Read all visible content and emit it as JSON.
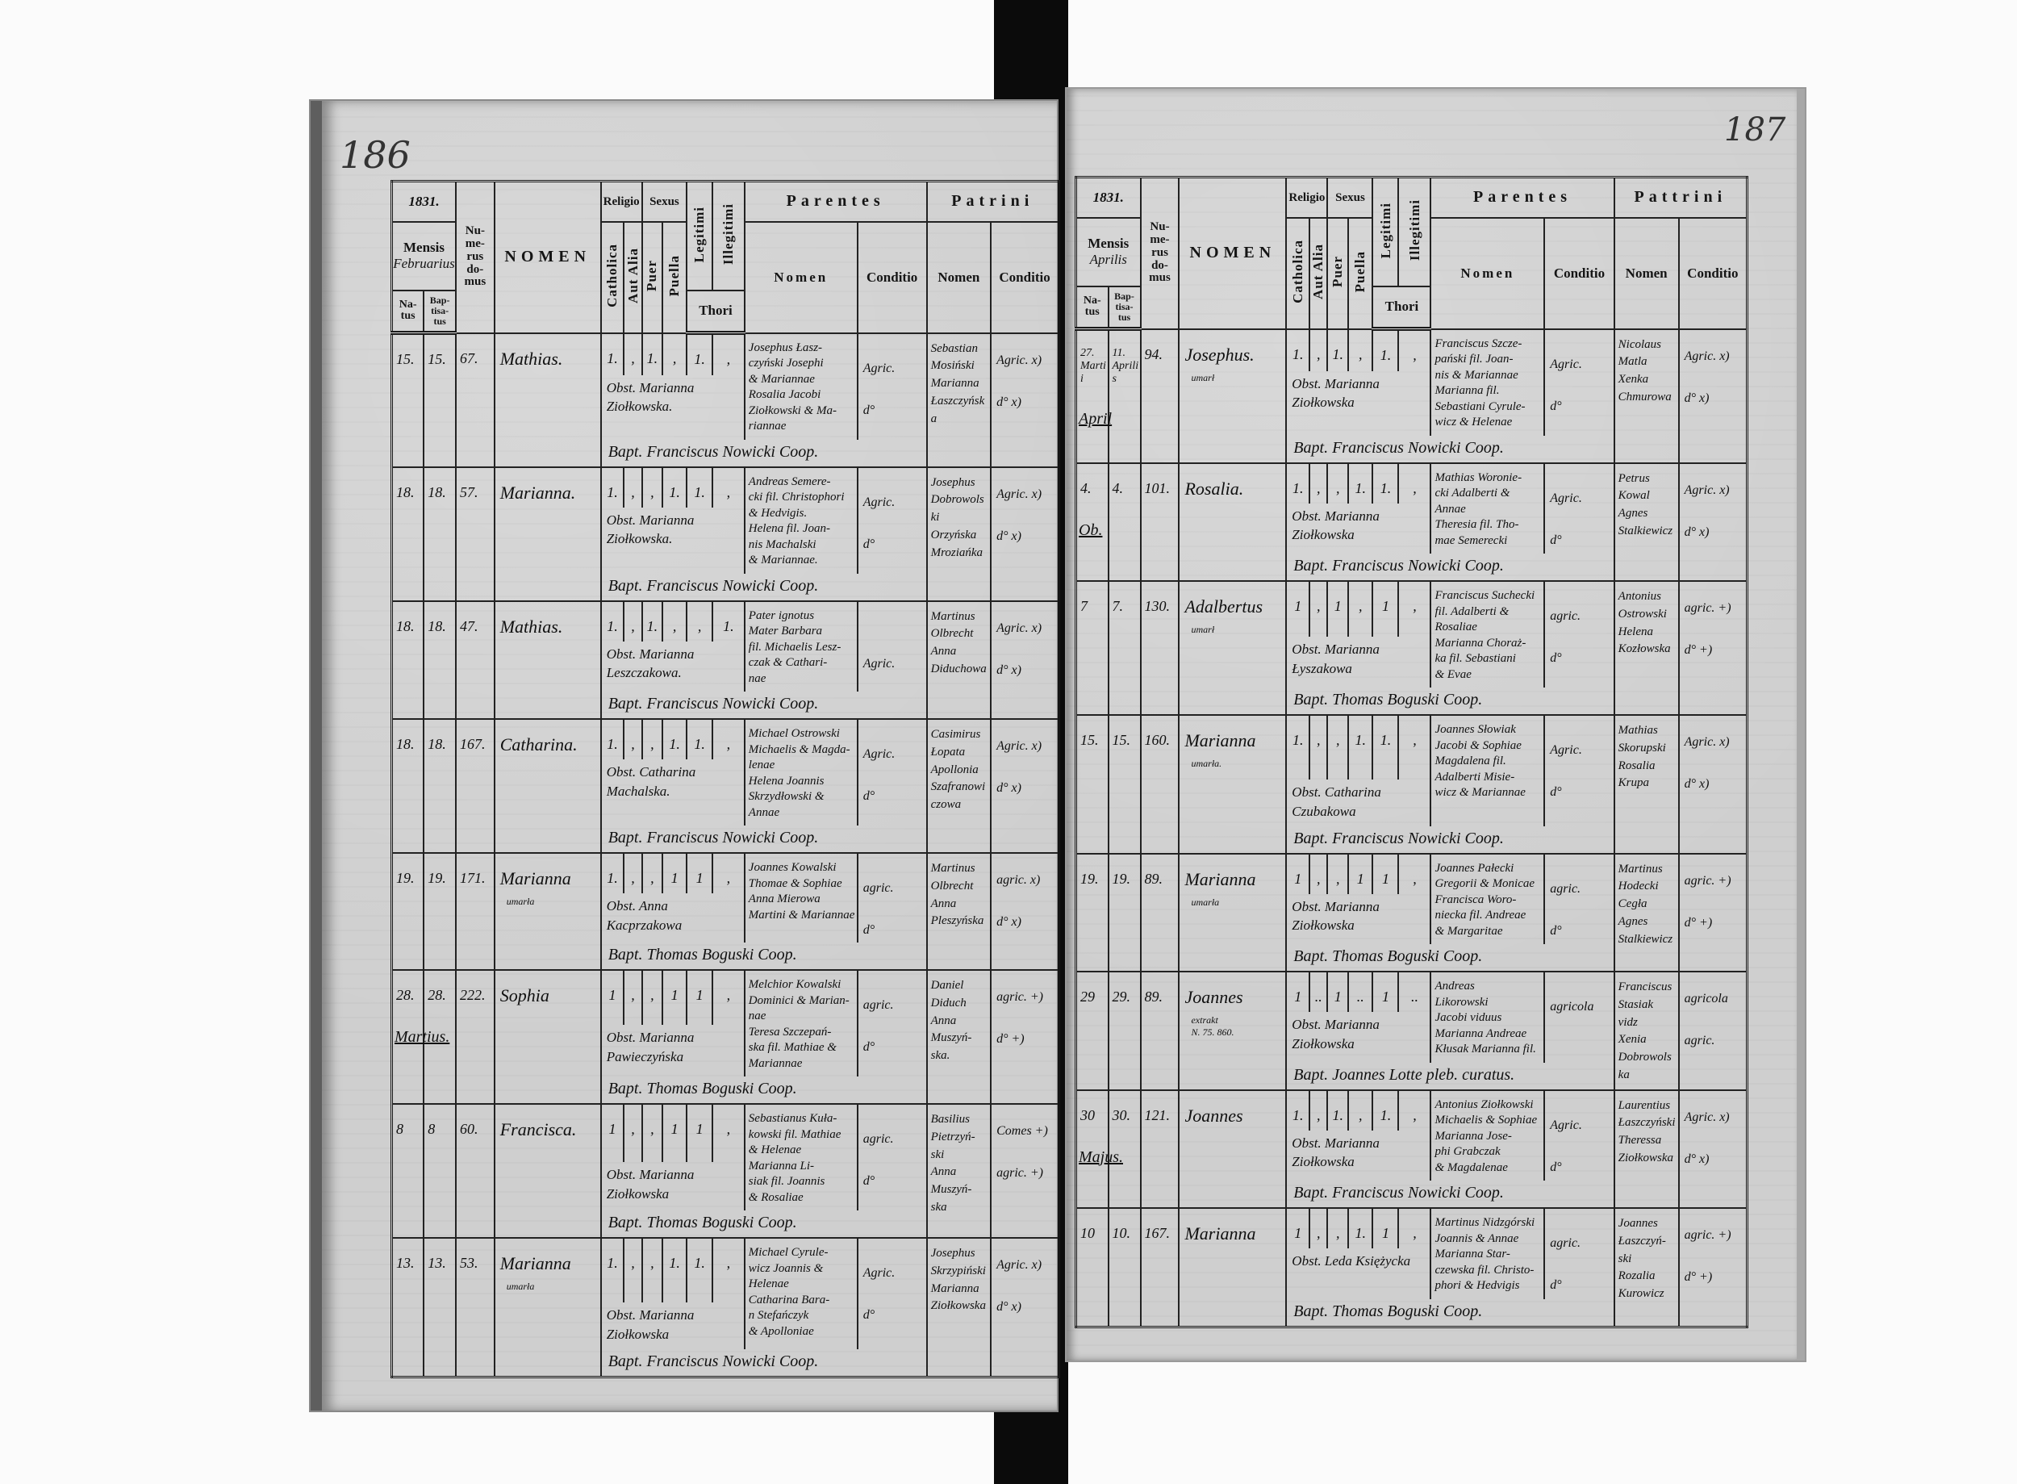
{
  "headers": {
    "year": "1831.",
    "mensis": "Mensis",
    "natus": "Na-\ntus",
    "baptisatus": "Bap-\ntisa-\ntus",
    "numerus_domus": "Nu-\nme-\nrus\ndo-\nmus",
    "nomen": "NOMEN",
    "religio": "Religio",
    "catholica": "Catholica",
    "aut_alia": "Aut Alia",
    "sexus": "Sexus",
    "puer": "Puer",
    "puella": "Puella",
    "legitimi": "Legitimi",
    "illegitimi": "Illegitimi",
    "thori": "Thori",
    "parentes": "Parentes",
    "sub_nomen": "Nomen",
    "conditio": "Conditio"
  },
  "pages": [
    {
      "page_number": "186",
      "month": "Februarius",
      "patrini_label": "Patrini",
      "entries": [
        {
          "natus": "15.",
          "baptisatus": "15.",
          "domus": "67.",
          "nomen": "Mathias.",
          "note": "",
          "marks": [
            "1.",
            ",",
            "1.",
            ",",
            "1.",
            ","
          ],
          "obstetrix": "Obst. Marianna\n   Ziołkowska.",
          "parents": "Josephus Łasz-\nczyński Josephi\n& Mariannae\nRosalia Jacobi\nZiołkowski & Ma-\nriannae",
          "parents_cond": [
            "Agric.",
            "d°"
          ],
          "patrini": "Sebastian\nMosiński\nMarianna\nŁaszczyńska",
          "patrini_cond": [
            "Agric. x)",
            "d° x)"
          ],
          "bapt": "Bapt. Franciscus Nowicki Coop.",
          "month_marker": ""
        },
        {
          "natus": "18.",
          "baptisatus": "18.",
          "domus": "57.",
          "nomen": "Marianna.",
          "note": "",
          "marks": [
            "1.",
            ",",
            ",",
            "1.",
            "1.",
            ","
          ],
          "obstetrix": "Obst. Marianna\n   Ziołkowska.",
          "parents": "Andreas Semere-\ncki fil. Christophori\n& Hedvigis.\nHelena fil. Joan-\nnis Machalski\n& Mariannae.",
          "parents_cond": [
            "Agric.",
            "d°"
          ],
          "patrini": "Josephus\nDobrowolski\nOrzyńska\nMroziańka",
          "patrini_cond": [
            "Agric. x)",
            "d° x)"
          ],
          "bapt": "Bapt. Franciscus Nowicki Coop.",
          "month_marker": ""
        },
        {
          "natus": "18.",
          "baptisatus": "18.",
          "domus": "47.",
          "nomen": "Mathias.",
          "note": "",
          "marks": [
            "1.",
            ",",
            "1.",
            ",",
            ",",
            "1."
          ],
          "obstetrix": "Obst. Marianna\n   Leszczakowa.",
          "parents": "Pater ignotus\nMater Barbara\nfil. Michaelis Lesz-\nczak & Cathari-\nnae",
          "parents_cond": [
            "",
            "Agric."
          ],
          "patrini": "Martinus\nOlbrecht\nAnna\nDiduchowa",
          "patrini_cond": [
            "Agric. x)",
            "d° x)"
          ],
          "bapt": "Bapt. Franciscus Nowicki Coop.",
          "month_marker": ""
        },
        {
          "natus": "18.",
          "baptisatus": "18.",
          "domus": "167.",
          "nomen": "Catharina.",
          "note": "",
          "marks": [
            "1.",
            ",",
            ",",
            "1.",
            "1.",
            ","
          ],
          "obstetrix": "Obst. Catharina\n   Machalska.",
          "parents": "Michael Ostrowski\nMichaelis & Magda-\nlenae\nHelena Joannis\nSkrzydłowski & Annae",
          "parents_cond": [
            "Agric.",
            "d°"
          ],
          "patrini": "Casimirus\nŁopata\nApollonia\nSzafranowiczowa",
          "patrini_cond": [
            "Agric. x)",
            "d° x)"
          ],
          "bapt": "Bapt. Franciscus Nowicki Coop.",
          "month_marker": ""
        },
        {
          "natus": "19.",
          "baptisatus": "19.",
          "domus": "171.",
          "nomen": "Marianna",
          "note": "umarła",
          "marks": [
            "1.",
            ",",
            ",",
            "1",
            "1",
            ","
          ],
          "obstetrix": "Obst. Anna\n   Kacprzakowa",
          "parents": "Joannes Kowalski\nThomae & Sophiae\nAnna Mierowa\nMartini & Mariannae",
          "parents_cond": [
            "agric.",
            "d°"
          ],
          "patrini": "Martinus\nOlbrecht\nAnna\nPleszyńska",
          "patrini_cond": [
            "agric. x)",
            "d° x)"
          ],
          "bapt": "Bapt. Thomas Boguski Coop.",
          "month_marker": ""
        },
        {
          "natus": "28.",
          "baptisatus": "28.",
          "domus": "222.",
          "nomen": "Sophia",
          "note": "",
          "marks": [
            "1",
            ",",
            ",",
            "1",
            "1",
            ","
          ],
          "obstetrix": "\n\nObst. Marianna\n   Pawieczyńska",
          "parents": "Melchior Kowalski\nDominici & Marian-\nnae\nTeresa Szczepań-\nska fil. Mathiae &\nMariannae",
          "parents_cond": [
            "agric.",
            "d°"
          ],
          "patrini": "Daniel\nDiduch\nAnna\nMuszyń-\nska.",
          "patrini_cond": [
            "agric. +)",
            "d° +)"
          ],
          "bapt": "Bapt. Thomas Boguski Coop.",
          "month_marker": "Martius."
        },
        {
          "natus": "8",
          "baptisatus": "8",
          "domus": "60.",
          "nomen": "Francisca.",
          "note": "",
          "marks": [
            "1",
            ",",
            ",",
            "1",
            "1",
            ","
          ],
          "obstetrix": "\n\n\nObst. Marianna\n   Ziołkowska",
          "parents": "Sebastianus Kuła-\nkowski fil. Mathiae\n& Helenae\nMarianna Li-\nsiak fil. Joannis\n& Rosaliae",
          "parents_cond": [
            "agric.",
            "d°"
          ],
          "patrini": "Basilius\nPietrzyń-\nski\nAnna\nMuszyń-\nska",
          "patrini_cond": [
            "Comes +)",
            "agric. +)"
          ],
          "bapt": "Bapt. Thomas Boguski Coop.",
          "month_marker": ""
        },
        {
          "natus": "13.",
          "baptisatus": "13.",
          "domus": "53.",
          "nomen": "Marianna",
          "note": "umarła",
          "marks": [
            "1.",
            ",",
            ",",
            "1.",
            "1.",
            ","
          ],
          "obstetrix": "Obst. Marianna\n   Ziołkowska",
          "parents": "Michael Cyrule-\nwicz Joannis &\nHelenae\nCatharina Bara-\nn Stefańczyk\n& Apolloniae",
          "parents_cond": [
            "Agric.",
            "d°"
          ],
          "patrini": "Josephus\nSkrzypiński\nMarianna\nZiołkowska",
          "patrini_cond": [
            "Agric. x)",
            "d° x)"
          ],
          "bapt": "Bapt. Franciscus Nowicki Coop.",
          "month_marker": ""
        }
      ]
    },
    {
      "page_number": "187",
      "month": "Aprilis",
      "patrini_label": "Pattrini",
      "entries": [
        {
          "natus": "27.\nMartii",
          "baptisatus": "11.\nAprilis",
          "domus": "94.",
          "nomen": "Josephus.",
          "note": "umarł",
          "marks": [
            "1.",
            ",",
            "1.",
            ",",
            "1.",
            ","
          ],
          "obstetrix": "Obst. Marianna\n   Ziołkowska",
          "parents": "Franciscus Szcze-\npański fil. Joan-\nnis & Mariannae\nMarianna fil.\nSebastiani Cyrule-\nwicz & Helenae",
          "parents_cond": [
            "Agric.",
            "d°"
          ],
          "patrini": "Nicolaus\nMatla\nXenka\nChmurowa",
          "patrini_cond": [
            "Agric. x)",
            "d° x)"
          ],
          "bapt": "Bapt. Franciscus Nowicki Coop.",
          "month_marker": "April"
        },
        {
          "natus": "4.",
          "baptisatus": "4.",
          "domus": "101.",
          "nomen": "Rosalia.",
          "note": "",
          "marks": [
            "1.",
            ",",
            ",",
            "1.",
            "1.",
            ","
          ],
          "obstetrix": "Obst. Marianna\n   Ziołkowska",
          "parents": "Mathias Woronie-\ncki Adalberti & Annae\nTheresia fil. Tho-\nmae Semerecki",
          "parents_cond": [
            "Agric.",
            "d°"
          ],
          "patrini": "Petrus\nKowal\nAgnes\nStalkiewicz",
          "patrini_cond": [
            "Agric. x)",
            "d° x)"
          ],
          "bapt": "Bapt. Franciscus Nowicki Coop.",
          "month_marker": "Ob."
        },
        {
          "natus": "7",
          "baptisatus": "7.",
          "domus": "130.",
          "nomen": "Adalbertus",
          "note": "umarł",
          "marks": [
            "1",
            ",",
            "1",
            ",",
            "1",
            ","
          ],
          "obstetrix": "\n\n\nObst. Marianna\n   Łyszakowa",
          "parents": "Franciscus Suchecki\nfil. Adalberti &\nRosaliae\nMarianna Choraż-\nka fil. Sebastiani\n& Evae",
          "parents_cond": [
            "agric.",
            "d°"
          ],
          "patrini": "Antonius\nOstrowski\nHelena\nKozłowska",
          "patrini_cond": [
            "agric. +)",
            "d° +)"
          ],
          "bapt": "Bapt. Thomas Boguski Coop.",
          "month_marker": ""
        },
        {
          "natus": "15.",
          "baptisatus": "15.",
          "domus": "160.",
          "nomen": "Marianna",
          "note": "umarła.",
          "marks": [
            "1.",
            ",",
            ",",
            "1.",
            "1.",
            ","
          ],
          "obstetrix": "Obst. Catharina\n   Czubakowa",
          "parents": "Joannes Słowiak\nJacobi & Sophiae\nMagdalena fil.\nAdalberti Misie-\nwicz & Mariannae",
          "parents_cond": [
            "Agric.",
            "d°"
          ],
          "patrini": "Mathias\nSkorupski\nRosalia\nKrupa",
          "patrini_cond": [
            "Agric. x)",
            "d° x)"
          ],
          "bapt": "Bapt. Franciscus Nowicki Coop.",
          "month_marker": ""
        },
        {
          "natus": "19.",
          "baptisatus": "19.",
          "domus": "89.",
          "nomen": "Marianna",
          "note": "umarła",
          "marks": [
            "1",
            ",",
            ",",
            "1",
            "1",
            ","
          ],
          "obstetrix": "\nObst. Marianna\n   Ziołkowska",
          "parents": "Joannes Pałecki\nGregorii & Monicae\nFrancisca Woro-\nniecka fil. Andreae\n& Margaritae",
          "parents_cond": [
            "agric.",
            "d°"
          ],
          "patrini": "Martinus\nHodecki\nCegła\nAgnes\nStalkiewicz",
          "patrini_cond": [
            "agric. +)",
            "d° +)"
          ],
          "bapt": "Bapt. Thomas Boguski Coop.",
          "month_marker": ""
        },
        {
          "natus": "29",
          "baptisatus": "29.",
          "domus": "89.",
          "nomen": "Joannes",
          "note": "extrakt\nN. 75. 860.",
          "marks": [
            "1",
            "..",
            "1",
            "..",
            "1",
            ".."
          ],
          "obstetrix": "\nObst. Marianna\n   Ziołkowska",
          "parents": "Andreas\nLikorowski\nJacobi viduus\nMarianna Andreae\nKłusak Marianna fil.",
          "parents_cond": [
            "agricola",
            ""
          ],
          "patrini": "Franciscus\nStasiak\nvidz\nXenia\nDobrowolska",
          "patrini_cond": [
            "agricola",
            "agric."
          ],
          "bapt": "Bapt. Joannes Lotte pleb. curatus.",
          "month_marker": ""
        },
        {
          "natus": "30",
          "baptisatus": "30.",
          "domus": "121.",
          "nomen": "Joannes",
          "note": "",
          "marks": [
            "1.",
            ",",
            "1.",
            ",",
            "1.",
            ","
          ],
          "obstetrix": "Obst. Marianna\n   Ziołkowska",
          "parents": "Antonius Ziołkowski\nMichaelis & Sophiae\nMarianna Jose-\nphi Grabczak\n& Magdalenae",
          "parents_cond": [
            "Agric.",
            "d°"
          ],
          "patrini": "Laurentius\nŁaszczyński\nTheressa\nZiołkowska",
          "patrini_cond": [
            "Agric. x)",
            "d° x)"
          ],
          "bapt": "Bapt. Franciscus Nowicki Coop.",
          "month_marker": "Majus."
        },
        {
          "natus": "10",
          "baptisatus": "10.",
          "domus": "167.",
          "nomen": "Marianna",
          "note": "",
          "marks": [
            "1",
            ",",
            ",",
            "1.",
            "1",
            ","
          ],
          "obstetrix": "\nObst. Leda\n   Księżycka",
          "parents": "Martinus Nidzgórski\nJoannis & Annae\nMarianna Star-\nczewska fil. Christo-\nphori & Hedvigis",
          "parents_cond": [
            "agric.",
            "d°"
          ],
          "patrini": "Joannes\nŁaszczyń-\nski\nRozalia\nKurowicz",
          "patrini_cond": [
            "agric. +)",
            "d° +)"
          ],
          "bapt": "Bapt. Thomas Boguski Coop.",
          "month_marker": ""
        }
      ]
    }
  ]
}
